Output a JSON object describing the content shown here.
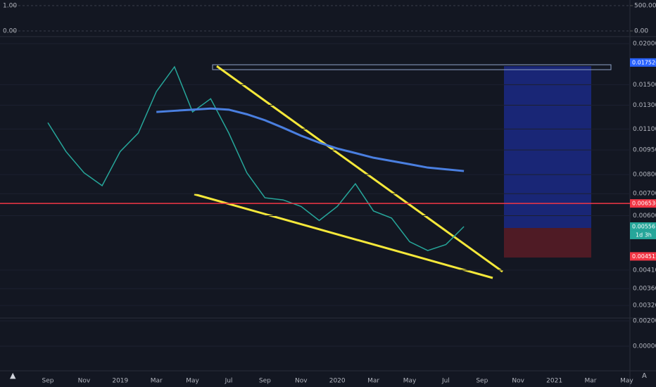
{
  "chart_data": {
    "type": "line",
    "categories": [
      "Sep",
      null,
      "Nov",
      null,
      "2019",
      null,
      "Mar",
      null,
      "May",
      null,
      "Jul",
      null,
      "Sep",
      null,
      "Nov",
      null,
      "2020",
      null,
      "Mar",
      null,
      "May",
      null,
      "Jul",
      null,
      "Sep",
      null,
      "Nov",
      null,
      "2021",
      null,
      "Mar",
      null,
      "May"
    ],
    "series": [
      {
        "color": "#26a69a",
        "values": [
          0.0115,
          0.0094,
          0.0081,
          0.0074,
          0.0094,
          0.0107,
          0.0143,
          0.017,
          0.0124,
          0.0136,
          0.0107,
          0.0081,
          0.0068,
          0.0067,
          0.0064,
          0.0058,
          0.0064,
          0.0075,
          0.0062,
          0.0059,
          0.005,
          0.0047,
          0.0049,
          0.00556,
          null,
          null,
          null,
          null,
          null,
          null,
          null,
          null,
          null
        ]
      },
      {
        "color": "#4a7fe0",
        "values": [
          null,
          null,
          null,
          null,
          null,
          null,
          0.0124,
          0.0125,
          0.0126,
          0.0127,
          0.0126,
          0.0122,
          0.0117,
          0.0111,
          0.0105,
          0.01,
          0.0096,
          0.0093,
          0.009,
          0.0088,
          0.0086,
          0.0084,
          0.0083,
          0.0082,
          null,
          null,
          null,
          null,
          null,
          null,
          null,
          null,
          null
        ]
      }
    ],
    "log_scale": true,
    "ylim": [
      0.00296,
      0.0207
    ],
    "yticks": [
      {
        "value": 0.02,
        "label": "0.020000"
      },
      {
        "value": 0.015,
        "label": "0.015000"
      },
      {
        "value": 0.013,
        "label": "0.013000"
      },
      {
        "value": 0.011,
        "label": "0.011000"
      },
      {
        "value": 0.0095,
        "label": "0.009500"
      },
      {
        "value": 0.008,
        "label": "0.008000"
      },
      {
        "value": 0.007,
        "label": "0.007000"
      },
      {
        "value": 0.006,
        "label": "0.006000"
      },
      {
        "value": 0.0041,
        "label": "0.004100"
      },
      {
        "value": 0.0036,
        "label": "0.003600"
      },
      {
        "value": 0.0032,
        "label": "0.003200"
      }
    ],
    "price_labels": [
      {
        "value": 0.017526,
        "color": "#2962ff"
      },
      {
        "value": 0.006536,
        "color": "#f23645"
      },
      {
        "value": 0.005561,
        "color": "#2a2e39"
      },
      {
        "value": 0.00556,
        "color": "#26a69a"
      },
      {
        "value": 0.004512,
        "color": "#f23645"
      }
    ],
    "countdown": "1d 3h"
  },
  "indicators": {
    "top_left_ticks": [
      {
        "value": 1,
        "label": "1.00"
      },
      {
        "value": 0,
        "label": "0.00"
      }
    ],
    "top_right_ticks": [
      {
        "value": 500,
        "label": "500.00"
      },
      {
        "value": 0,
        "label": "0.00"
      }
    ],
    "macd_ticks": [
      {
        "value": 0.002,
        "label": "0.002000"
      },
      {
        "value": 0,
        "label": "0.000000"
      }
    ]
  }
}
